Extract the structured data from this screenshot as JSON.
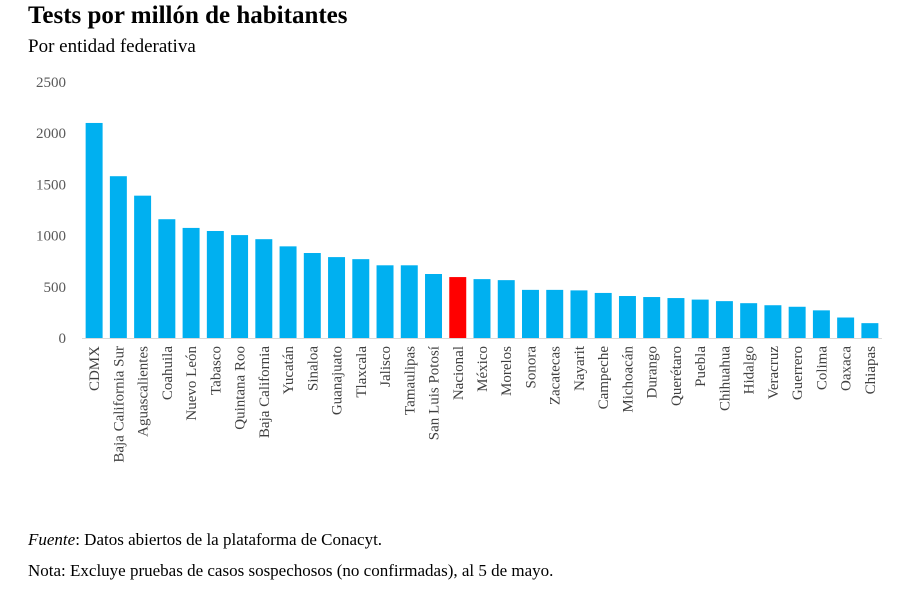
{
  "header": {
    "title": "Tests por millón de habitantes",
    "subtitle": "Por entidad federativa"
  },
  "footer": {
    "source_label": "Fuente",
    "source_text": ": Datos abiertos de la plataforma de Conacyt.",
    "note": "Nota: Excluye pruebas de casos sospechosos (no confirmadas), al 5 de mayo."
  },
  "colors": {
    "bar": "#00B0F0",
    "highlight": "#FF0000",
    "axis": "#D9D9D9"
  },
  "chart_data": {
    "type": "bar",
    "title": "Tests por millón de habitantes",
    "subtitle": "Por entidad federativa",
    "ylim": [
      0,
      2500
    ],
    "yticks": [
      0,
      500,
      1000,
      1500,
      2000,
      2500
    ],
    "grid": false,
    "highlight": "Nacional",
    "categories": [
      "CDMX",
      "Baja California Sur",
      "Aguascalientes",
      "Coahuila",
      "Nuevo León",
      "Tabasco",
      "Quintana Roo",
      "Baja California",
      "Yucatán",
      "Sinaloa",
      "Guanajuato",
      "Tlaxcala",
      "Jalisco",
      "Tamaulipas",
      "San Luis Potosí",
      "Nacional",
      "México",
      "Morelos",
      "Sonora",
      "Zacatecas",
      "Nayarit",
      "Campeche",
      "Michoacán",
      "Durango",
      "Querétaro",
      "Puebla",
      "Chihuahua",
      "Hidalgo",
      "Veracruz",
      "Guerrero",
      "Colima",
      "Oaxaca",
      "Chiapas"
    ],
    "values": [
      2100,
      1580,
      1390,
      1160,
      1075,
      1045,
      1005,
      965,
      895,
      830,
      790,
      770,
      710,
      710,
      625,
      595,
      575,
      565,
      470,
      470,
      465,
      440,
      410,
      400,
      390,
      375,
      360,
      340,
      320,
      305,
      270,
      200,
      145
    ]
  }
}
